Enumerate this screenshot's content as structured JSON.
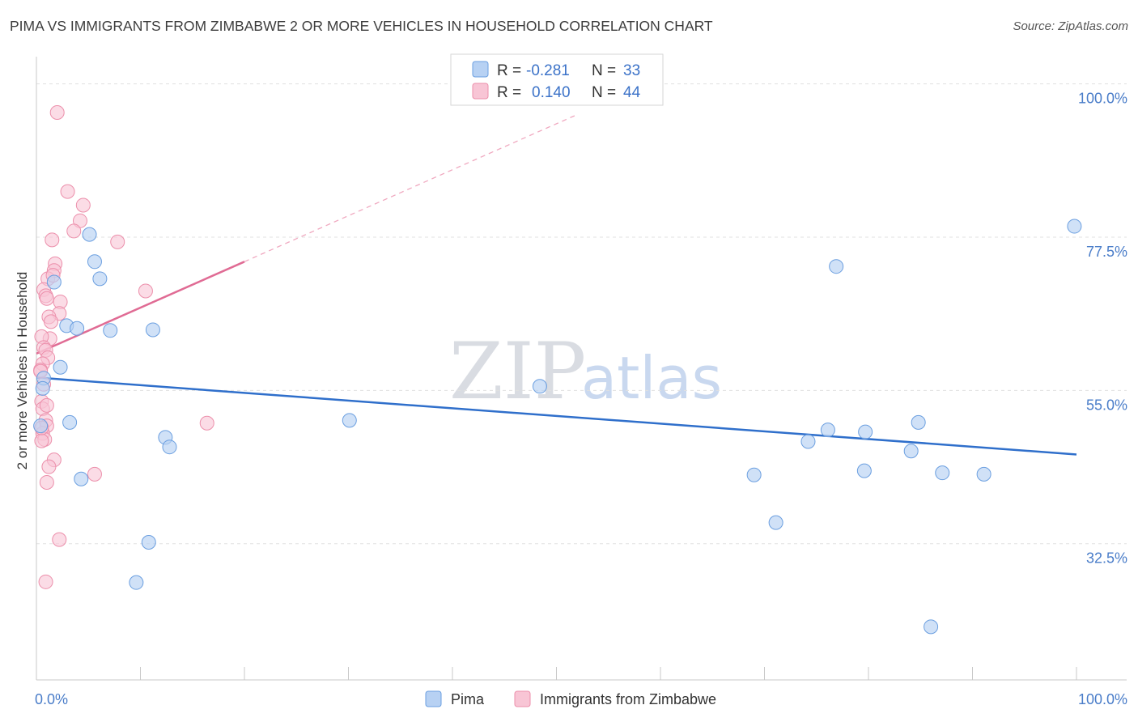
{
  "header": {
    "title": "PIMA VS IMMIGRANTS FROM ZIMBABWE 2 OR MORE VEHICLES IN HOUSEHOLD CORRELATION CHART",
    "source": "Source: ZipAtlas.com"
  },
  "watermark": {
    "zip": "ZIP",
    "atlas": "atlas"
  },
  "chart_data": {
    "type": "scatter",
    "title": "PIMA VS IMMIGRANTS FROM ZIMBABWE 2 OR MORE VEHICLES IN HOUSEHOLD CORRELATION CHART",
    "xlabel": "",
    "ylabel": "2 or more Vehicles in Household",
    "xlim": [
      0,
      100
    ],
    "ylim": [
      12.5,
      104
    ],
    "x_tick_labels": [
      "0.0%",
      "100.0%"
    ],
    "y_ticks": [
      {
        "value": 32.5,
        "label": "32.5%"
      },
      {
        "value": 55.0,
        "label": "55.0%"
      },
      {
        "value": 77.5,
        "label": "77.5%"
      },
      {
        "value": 100.0,
        "label": "100.0%"
      }
    ],
    "legend": {
      "position": "top-center",
      "entries": [
        {
          "name": "Pima",
          "r_label": "R =",
          "r_value": "-0.281",
          "n_label": "N =",
          "n_value": "33"
        },
        {
          "name": "Immigrants from Zimbabwe",
          "r_label": "R =",
          "r_value": "0.140",
          "n_label": "N =",
          "n_value": "44"
        }
      ]
    },
    "colors": {
      "pima_fill": "#b7d1f3",
      "pima_stroke": "#6b9fe0",
      "pima_line": "#2f6fcb",
      "zim_fill": "#f8c5d5",
      "zim_stroke": "#ec8fab",
      "zim_line": "#e06b94",
      "grid": "#e0e0e0",
      "axis": "#c9c9c9",
      "tick_label": "#4a7dc9"
    },
    "series": [
      {
        "name": "Pima",
        "points": [
          [
            0.7,
            56.8
          ],
          [
            0.6,
            55.3
          ],
          [
            0.4,
            49.8
          ],
          [
            1.7,
            70.9
          ],
          [
            2.3,
            58.4
          ],
          [
            2.9,
            64.5
          ],
          [
            3.9,
            64.1
          ],
          [
            3.2,
            50.3
          ],
          [
            4.3,
            42.0
          ],
          [
            5.1,
            77.9
          ],
          [
            5.6,
            73.9
          ],
          [
            6.1,
            71.4
          ],
          [
            7.1,
            63.8
          ],
          [
            9.6,
            26.8
          ],
          [
            10.8,
            32.7
          ],
          [
            11.2,
            63.9
          ],
          [
            12.4,
            48.1
          ],
          [
            12.8,
            46.7
          ],
          [
            30.1,
            50.6
          ],
          [
            48.4,
            55.6
          ],
          [
            69.0,
            42.6
          ],
          [
            71.1,
            35.6
          ],
          [
            74.2,
            47.5
          ],
          [
            76.1,
            49.2
          ],
          [
            76.9,
            73.2
          ],
          [
            79.6,
            43.2
          ],
          [
            79.7,
            48.9
          ],
          [
            84.1,
            46.1
          ],
          [
            84.8,
            50.3
          ],
          [
            86.0,
            20.3
          ],
          [
            87.1,
            42.9
          ],
          [
            91.1,
            42.7
          ],
          [
            99.8,
            79.1
          ]
        ],
        "trend": {
          "x": [
            0,
            100
          ],
          "y": [
            56.9,
            45.6
          ]
        }
      },
      {
        "name": "Immigrants from Zimbabwe",
        "points": [
          [
            2.0,
            95.8
          ],
          [
            3.0,
            84.2
          ],
          [
            4.2,
            79.9
          ],
          [
            4.5,
            82.2
          ],
          [
            3.6,
            78.4
          ],
          [
            1.5,
            77.1
          ],
          [
            7.8,
            76.8
          ],
          [
            1.8,
            73.6
          ],
          [
            1.7,
            72.6
          ],
          [
            1.1,
            71.4
          ],
          [
            1.6,
            71.9
          ],
          [
            0.7,
            69.8
          ],
          [
            0.9,
            68.9
          ],
          [
            1.0,
            68.5
          ],
          [
            2.3,
            68.0
          ],
          [
            10.5,
            69.6
          ],
          [
            2.2,
            66.3
          ],
          [
            1.2,
            65.8
          ],
          [
            1.4,
            65.1
          ],
          [
            1.3,
            62.6
          ],
          [
            0.5,
            62.9
          ],
          [
            0.7,
            61.3
          ],
          [
            0.9,
            60.9
          ],
          [
            1.1,
            59.8
          ],
          [
            0.6,
            58.9
          ],
          [
            0.4,
            58.0
          ],
          [
            0.4,
            57.8
          ],
          [
            0.7,
            55.9
          ],
          [
            0.5,
            53.4
          ],
          [
            0.6,
            52.3
          ],
          [
            1.0,
            52.8
          ],
          [
            0.9,
            50.6
          ],
          [
            1.0,
            49.8
          ],
          [
            0.6,
            48.7
          ],
          [
            0.8,
            47.8
          ],
          [
            0.5,
            47.6
          ],
          [
            16.4,
            50.2
          ],
          [
            1.7,
            44.8
          ],
          [
            1.2,
            43.8
          ],
          [
            5.6,
            42.7
          ],
          [
            1.0,
            41.5
          ],
          [
            2.2,
            33.1
          ],
          [
            0.9,
            26.9
          ],
          [
            0.5,
            49.5
          ]
        ],
        "trend": {
          "x": [
            0,
            20
          ],
          "y": [
            60.4,
            73.9
          ]
        },
        "trend_extended": {
          "x": [
            20,
            52
          ],
          "y": [
            73.9,
            95.5
          ]
        }
      }
    ]
  }
}
